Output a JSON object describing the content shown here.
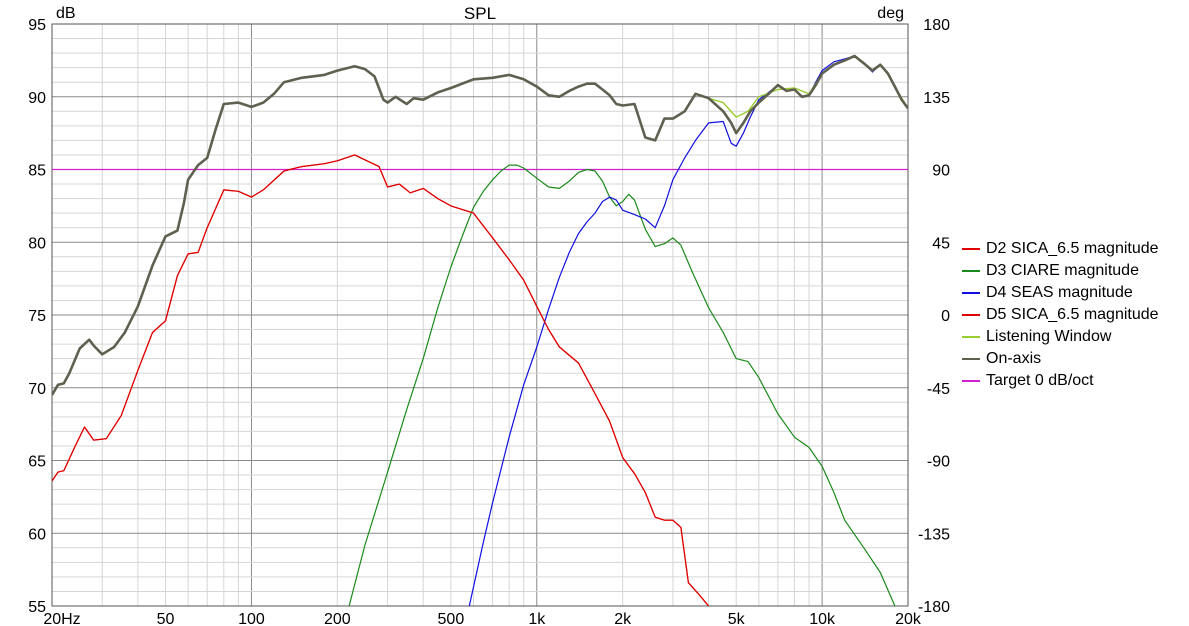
{
  "chart_data": {
    "type": "line",
    "title": "SPL",
    "left_unit": "dB",
    "right_unit": "deg",
    "x_scale": "log",
    "xlim": [
      20,
      20000
    ],
    "ylim": [
      55,
      95
    ],
    "y2lim": [
      -180,
      180
    ],
    "x_ticks": [
      {
        "value": 20,
        "label": "20Hz"
      },
      {
        "value": 50,
        "label": "50"
      },
      {
        "value": 100,
        "label": "100"
      },
      {
        "value": 200,
        "label": "200"
      },
      {
        "value": 500,
        "label": "500"
      },
      {
        "value": 1000,
        "label": "1k"
      },
      {
        "value": 2000,
        "label": "2k"
      },
      {
        "value": 5000,
        "label": "5k"
      },
      {
        "value": 10000,
        "label": "10k"
      },
      {
        "value": 20000,
        "label": "20k"
      }
    ],
    "y_ticks": [
      "55",
      "60",
      "65",
      "70",
      "75",
      "80",
      "85",
      "90",
      "95"
    ],
    "y2_ticks": [
      "-180",
      "-135",
      "-90",
      "-45",
      "0",
      "45",
      "90",
      "135",
      "180"
    ],
    "grid": true,
    "legend_position": "right",
    "series": [
      {
        "name": "D2 SICA_6.5 magnitude",
        "color": "#e00000",
        "x": [
          20,
          21,
          22,
          24,
          26,
          28,
          31,
          35,
          40,
          45,
          50,
          55,
          60,
          65,
          70,
          80,
          90,
          100,
          110,
          130,
          150,
          180,
          200,
          230,
          260,
          280,
          300,
          330,
          360,
          400,
          450,
          500,
          600,
          700,
          800,
          900,
          1000,
          1100,
          1200,
          1400,
          1600,
          1800,
          2000,
          2200,
          2400,
          2600,
          2800,
          3000,
          3200,
          3400,
          3700,
          4000
        ],
        "values": [
          63.6,
          64.2,
          64.3,
          65.9,
          67.3,
          66.4,
          66.5,
          68.1,
          71.2,
          73.8,
          74.6,
          77.7,
          79.2,
          79.3,
          81.0,
          83.6,
          83.5,
          83.1,
          83.6,
          84.9,
          85.2,
          85.4,
          85.6,
          86.0,
          85.5,
          85.2,
          83.8,
          84.0,
          83.4,
          83.7,
          83.0,
          82.5,
          82.0,
          80.3,
          78.8,
          77.4,
          75.6,
          74.0,
          72.8,
          71.7,
          69.6,
          67.7,
          65.2,
          64.1,
          62.8,
          61.1,
          60.9,
          60.9,
          60.4,
          56.6,
          55.8,
          55.0
        ]
      },
      {
        "name": "D3 CIARE magnitude",
        "color": "#1a8a1a",
        "x": [
          220,
          250,
          300,
          350,
          400,
          450,
          500,
          550,
          600,
          650,
          700,
          750,
          800,
          850,
          900,
          1000,
          1100,
          1200,
          1300,
          1400,
          1500,
          1600,
          1700,
          1800,
          1900,
          2000,
          2100,
          2200,
          2400,
          2600,
          2800,
          3000,
          3200,
          3500,
          4000,
          4500,
          5000,
          5500,
          6000,
          7000,
          8000,
          9000,
          10000,
          11000,
          12000,
          14000,
          16000,
          18000
        ],
        "values": [
          55.0,
          59.2,
          64.2,
          68.5,
          72.0,
          75.5,
          78.3,
          80.5,
          82.4,
          83.5,
          84.3,
          84.9,
          85.3,
          85.3,
          85.1,
          84.4,
          83.8,
          83.7,
          84.2,
          84.8,
          85.0,
          84.9,
          84.2,
          83.1,
          82.5,
          82.8,
          83.3,
          82.9,
          80.9,
          79.7,
          79.9,
          80.3,
          79.8,
          78.0,
          75.5,
          73.8,
          72.0,
          71.8,
          70.7,
          68.2,
          66.6,
          65.9,
          64.6,
          62.8,
          60.9,
          59.0,
          57.3,
          55.0
        ]
      },
      {
        "name": "D4 SEAS magnitude",
        "color": "#1010e0",
        "x": [
          580,
          650,
          700,
          800,
          900,
          1000,
          1100,
          1200,
          1300,
          1400,
          1500,
          1600,
          1700,
          1800,
          1900,
          2000,
          2200,
          2400,
          2600,
          2800,
          3000,
          3300,
          3600,
          4000,
          4500,
          4800,
          5000,
          5300,
          5600,
          6000,
          6500,
          7000,
          7500,
          8000,
          8500,
          9000,
          9500,
          10000,
          11000,
          12000,
          13000,
          14000,
          15000,
          16000,
          17000,
          18000,
          19000,
          20000
        ],
        "values": [
          55.0,
          59.4,
          62.1,
          66.6,
          70.2,
          72.8,
          75.4,
          77.6,
          79.3,
          80.6,
          81.4,
          82.0,
          82.8,
          83.1,
          82.9,
          82.2,
          81.9,
          81.6,
          81.0,
          82.5,
          84.3,
          85.8,
          87.0,
          88.2,
          88.3,
          86.8,
          86.6,
          87.5,
          88.6,
          89.8,
          90.3,
          90.8,
          90.4,
          90.5,
          90.0,
          90.1,
          91.0,
          91.8,
          92.4,
          92.6,
          92.8,
          92.3,
          91.7,
          92.2,
          91.6,
          90.6,
          89.8,
          89.2
        ]
      },
      {
        "name": "D5 SICA_6.5 magnitude",
        "color": "#e00000",
        "x": [
          20,
          21,
          22,
          24,
          26,
          28,
          31,
          35,
          40,
          45,
          50,
          55,
          60,
          65,
          70,
          80,
          90,
          100,
          110,
          130,
          150,
          180,
          200,
          230,
          260,
          280,
          300,
          330,
          360,
          400,
          450,
          500,
          600,
          700,
          800,
          900,
          1000,
          1100,
          1200,
          1400,
          1600,
          1800,
          2000,
          2200,
          2400,
          2600,
          2800,
          3000,
          3200,
          3400,
          3700,
          4000
        ],
        "values": [
          63.6,
          64.2,
          64.3,
          65.9,
          67.3,
          66.4,
          66.5,
          68.1,
          71.2,
          73.8,
          74.6,
          77.7,
          79.2,
          79.3,
          81.0,
          83.6,
          83.5,
          83.1,
          83.6,
          84.9,
          85.2,
          85.4,
          85.6,
          86.0,
          85.5,
          85.2,
          83.8,
          84.0,
          83.4,
          83.7,
          83.0,
          82.5,
          82.0,
          80.3,
          78.8,
          77.4,
          75.6,
          74.0,
          72.8,
          71.7,
          69.6,
          67.7,
          65.2,
          64.1,
          62.8,
          61.1,
          60.9,
          60.9,
          60.4,
          56.6,
          55.8,
          55.0
        ]
      },
      {
        "name": "Listening Window",
        "color": "#9acd32",
        "x": [
          4000,
          4500,
          5000,
          5500,
          6000,
          7000,
          8000,
          9000,
          10000,
          11000,
          12000,
          13000,
          14000,
          15000,
          16000,
          17000,
          18000,
          20000
        ],
        "values": [
          89.9,
          89.6,
          88.6,
          89.0,
          90.0,
          90.5,
          90.6,
          90.2,
          91.6,
          92.2,
          92.5,
          92.8,
          92.3,
          91.8,
          92.2,
          91.6,
          90.7,
          89.2
        ]
      },
      {
        "name": "On-axis",
        "color": "#606050",
        "x": [
          20,
          21,
          22,
          23,
          25,
          27,
          28,
          30,
          33,
          36,
          40,
          45,
          50,
          55,
          58,
          60,
          65,
          70,
          75,
          80,
          90,
          100,
          110,
          120,
          130,
          150,
          180,
          200,
          230,
          250,
          270,
          290,
          300,
          320,
          350,
          370,
          400,
          450,
          500,
          600,
          700,
          800,
          900,
          1000,
          1100,
          1200,
          1300,
          1400,
          1500,
          1600,
          1700,
          1800,
          1900,
          2000,
          2200,
          2400,
          2600,
          2800,
          3000,
          3300,
          3600,
          4000,
          4500,
          4800,
          5000,
          5300,
          5600,
          6000,
          6500,
          7000,
          7500,
          8000,
          8500,
          9000,
          9500,
          10000,
          11000,
          12000,
          13000,
          14000,
          15000,
          16000,
          17000,
          18000,
          19000,
          20000
        ],
        "values": [
          69.5,
          70.2,
          70.3,
          71.0,
          72.7,
          73.3,
          72.9,
          72.3,
          72.8,
          73.8,
          75.6,
          78.4,
          80.4,
          80.8,
          82.7,
          84.3,
          85.3,
          85.8,
          87.8,
          89.5,
          89.6,
          89.3,
          89.6,
          90.2,
          91.0,
          91.3,
          91.5,
          91.8,
          92.1,
          91.9,
          91.4,
          89.8,
          89.6,
          90.0,
          89.5,
          89.9,
          89.8,
          90.3,
          90.6,
          91.2,
          91.3,
          91.5,
          91.2,
          90.7,
          90.1,
          90.0,
          90.4,
          90.7,
          90.9,
          90.9,
          90.5,
          90.1,
          89.5,
          89.4,
          89.5,
          87.2,
          87.0,
          88.5,
          88.5,
          89.0,
          90.2,
          89.9,
          89.0,
          88.2,
          87.5,
          88.2,
          89.0,
          89.6,
          90.2,
          90.8,
          90.4,
          90.5,
          90.0,
          90.1,
          90.8,
          91.6,
          92.2,
          92.5,
          92.8,
          92.3,
          91.8,
          92.2,
          91.6,
          90.7,
          89.8,
          89.2
        ]
      },
      {
        "name": "Target 0 dB/oct",
        "color": "#d020d0",
        "x": [
          20,
          20000
        ],
        "values": [
          85,
          85
        ]
      }
    ]
  }
}
